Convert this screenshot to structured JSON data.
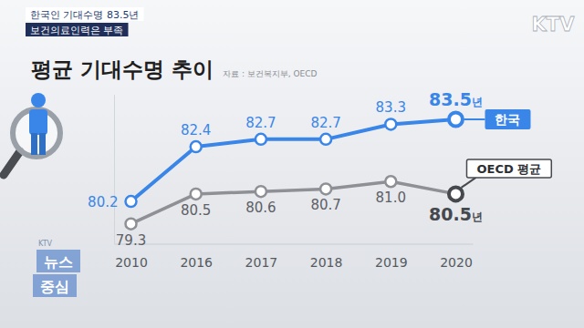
{
  "chart_data": {
    "type": "line",
    "title": "평균 기대수명 추이",
    "subtitle": "자료 : 보건복지부, OECD",
    "annotations": [
      "한국인 기대수명 83.5년",
      "보건의료인력은 부족",
      "KTV",
      "KTV",
      "뉴스",
      "중심"
    ],
    "categories": [
      "2010",
      "2016",
      "2017",
      "2018",
      "2019",
      "2020"
    ],
    "series": [
      {
        "name": "한국",
        "color": "#3a86e8",
        "values": [
          80.2,
          82.4,
          82.7,
          82.7,
          83.3,
          83.5
        ],
        "value_labels": [
          "80.2",
          "82.4",
          "82.7",
          "82.7",
          "83.3",
          "83.5년"
        ]
      },
      {
        "name": "OECD 평균",
        "color": "#8e9096",
        "values": [
          79.3,
          80.5,
          80.6,
          80.7,
          81.0,
          80.5
        ],
        "value_labels": [
          "79.3",
          "80.5",
          "80.6",
          "80.7",
          "81.0",
          "80.5년"
        ]
      }
    ],
    "ylim": [
      78.5,
      84.5
    ],
    "data_labels": true,
    "marker": "circle",
    "tick_labels": "x",
    "grid": false
  }
}
